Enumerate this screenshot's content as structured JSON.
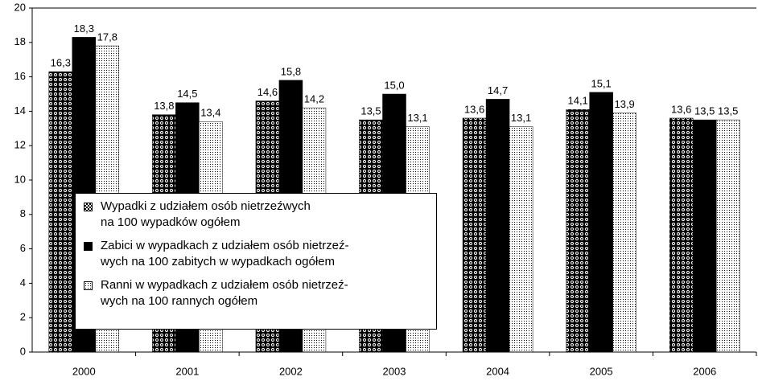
{
  "chart_data": {
    "type": "bar",
    "categories": [
      "2000",
      "2001",
      "2002",
      "2003",
      "2004",
      "2005",
      "2006"
    ],
    "series": [
      {
        "name": "Wypadki z udziałem osób nietrzeźwych\nna 100 wypadków ogółem",
        "color": "#000000",
        "pattern": "checker",
        "values": [
          16.3,
          13.8,
          14.6,
          13.5,
          13.6,
          14.1,
          13.6
        ],
        "value_labels": [
          "16,3",
          "13,8",
          "14,6",
          "13,5",
          "13,6",
          "14,1",
          "13,6"
        ]
      },
      {
        "name": "Zabici w wypadkach z udziałem osób nietrzeź-\nwych na 100 zabitych w wypadkach ogółem",
        "color": "#000000",
        "pattern": "solid",
        "values": [
          18.3,
          14.5,
          15.8,
          15.0,
          14.7,
          15.1,
          13.5
        ],
        "value_labels": [
          "18,3",
          "14,5",
          "15,8",
          "15,0",
          "14,7",
          "15,1",
          "13,5"
        ]
      },
      {
        "name": "Ranni w wypadkach z udziałem osób nietrzeź-\nwych na 100 rannych ogółem",
        "color": "#000000",
        "pattern": "dots",
        "values": [
          17.8,
          13.4,
          14.2,
          13.1,
          13.1,
          13.9,
          13.5
        ],
        "value_labels": [
          "17,8",
          "13,4",
          "14,2",
          "13,1",
          "13,1",
          "13,9",
          "13,5"
        ]
      }
    ],
    "ylim": [
      0,
      20
    ],
    "yticks": [
      0,
      2,
      4,
      6,
      8,
      10,
      12,
      14,
      16,
      18,
      20
    ],
    "grid": false
  }
}
